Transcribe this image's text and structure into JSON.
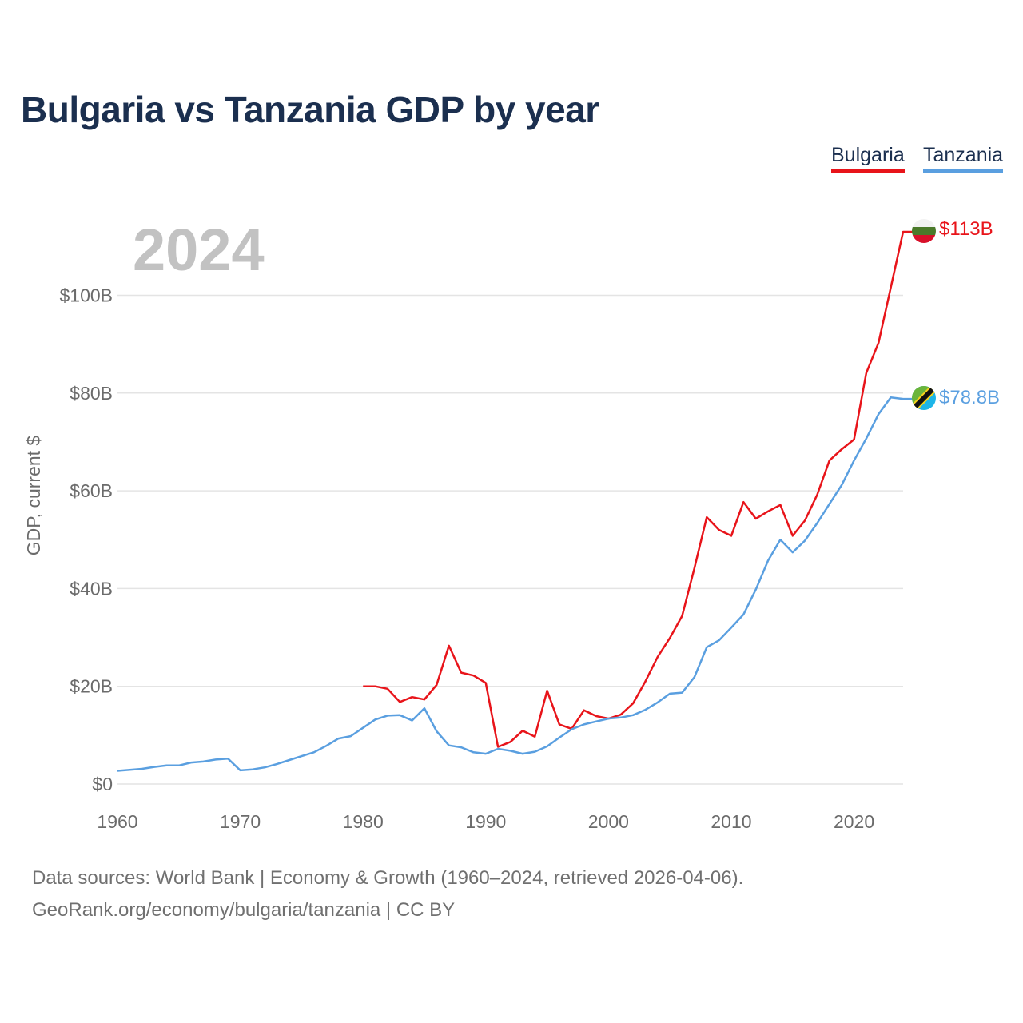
{
  "title": "Bulgaria vs Tanzania GDP by year",
  "footer": {
    "sources": "Data sources: World Bank | Economy & Growth (1960–2024, retrieved 2026-04-06).",
    "credit": "GeoRank.org/economy/bulgaria/tanzania | CC BY"
  },
  "chart_data": {
    "type": "line",
    "title": "Bulgaria vs Tanzania GDP by year",
    "year_label": "2024",
    "xlabel": "",
    "ylabel": "GDP, current $",
    "xlim": [
      1960,
      2024
    ],
    "ylim": [
      0,
      113
    ],
    "grid": true,
    "legend_position": "top-right",
    "x_ticks": [
      1960,
      1970,
      1980,
      1990,
      2000,
      2010,
      2020
    ],
    "x_tick_labels": [
      "1960",
      "1970",
      "1980",
      "1990",
      "2000",
      "2010",
      "2020"
    ],
    "y_ticks": [
      0,
      20,
      40,
      60,
      80,
      100
    ],
    "y_tick_labels": [
      "$0",
      "$20B",
      "$40B",
      "$60B",
      "$80B",
      "$100B"
    ],
    "series": [
      {
        "name": "Bulgaria",
        "color": "#e8141a",
        "end_label": "$113B",
        "x": [
          1980,
          1981,
          1982,
          1983,
          1984,
          1985,
          1986,
          1987,
          1988,
          1989,
          1990,
          1991,
          1992,
          1993,
          1994,
          1995,
          1996,
          1997,
          1998,
          1999,
          2000,
          2001,
          2002,
          2003,
          2004,
          2005,
          2006,
          2007,
          2008,
          2009,
          2010,
          2011,
          2012,
          2013,
          2014,
          2015,
          2016,
          2017,
          2018,
          2019,
          2020,
          2021,
          2022,
          2023,
          2024
        ],
        "values": [
          20.0,
          20.0,
          19.5,
          16.8,
          17.8,
          17.3,
          20.3,
          28.3,
          22.8,
          22.2,
          20.7,
          7.6,
          8.6,
          10.9,
          9.7,
          19.1,
          12.2,
          11.3,
          15.1,
          13.9,
          13.4,
          14.2,
          16.5,
          21.0,
          26.0,
          29.9,
          34.4,
          44.2,
          54.6,
          52.0,
          50.8,
          57.7,
          54.3,
          55.8,
          57.1,
          50.8,
          53.9,
          59.2,
          66.2,
          68.5,
          70.5,
          84.1,
          90.3,
          101.6,
          113.0
        ]
      },
      {
        "name": "Tanzania",
        "color": "#5a9fe0",
        "end_label": "$78.8B",
        "x": [
          1960,
          1961,
          1962,
          1963,
          1964,
          1965,
          1966,
          1967,
          1968,
          1969,
          1970,
          1971,
          1972,
          1973,
          1974,
          1975,
          1976,
          1977,
          1978,
          1979,
          1980,
          1981,
          1982,
          1983,
          1984,
          1985,
          1986,
          1987,
          1988,
          1989,
          1990,
          1991,
          1992,
          1993,
          1994,
          1995,
          1996,
          1997,
          1998,
          1999,
          2000,
          2001,
          2002,
          2003,
          2004,
          2005,
          2006,
          2007,
          2008,
          2009,
          2010,
          2011,
          2012,
          2013,
          2014,
          2015,
          2016,
          2017,
          2018,
          2019,
          2020,
          2021,
          2022,
          2023,
          2024
        ],
        "values": [
          2.7,
          2.9,
          3.1,
          3.5,
          3.8,
          3.8,
          4.4,
          4.6,
          5.0,
          5.2,
          2.8,
          3.0,
          3.4,
          4.1,
          4.9,
          5.7,
          6.5,
          7.8,
          9.3,
          9.8,
          11.5,
          13.2,
          14.0,
          14.1,
          13.0,
          15.5,
          10.8,
          7.9,
          7.5,
          6.5,
          6.2,
          7.2,
          6.8,
          6.2,
          6.6,
          7.7,
          9.5,
          11.2,
          12.2,
          12.8,
          13.4,
          13.6,
          14.1,
          15.2,
          16.7,
          18.5,
          18.7,
          21.9,
          28.0,
          29.4,
          32.0,
          34.7,
          39.8,
          45.7,
          50.0,
          47.4,
          49.8,
          53.4,
          57.3,
          61.2,
          66.2,
          70.7,
          75.7,
          79.1,
          78.8
        ]
      }
    ]
  }
}
